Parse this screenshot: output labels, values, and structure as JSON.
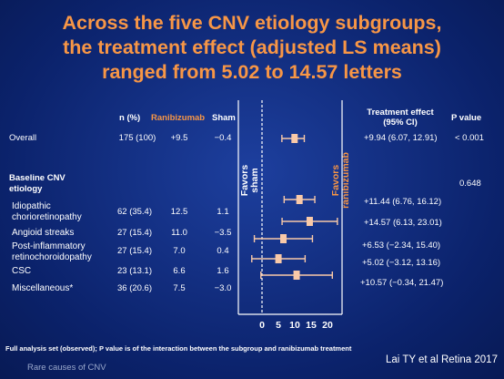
{
  "title_lines": [
    "Across the five CNV etiology subgroups,",
    "the treatment effect (adjusted LS means)",
    "ranged from 5.02 to 14.57 letters"
  ],
  "headers": {
    "n_pct": "n (%)",
    "ranibizumab": "Ranibizumab",
    "sham": "Sham",
    "treatment_effect": "Treatment effect\n(95% CI)",
    "p_value": "P value"
  },
  "overall": {
    "label": "Overall",
    "n": "175 (100)",
    "ranibizumab": "+9.5",
    "sham": "−0.4",
    "effect_text": "+9.94 (6.07, 12.91)",
    "p_value": "< 0.001"
  },
  "subgroup_header": "Baseline CNV\netiology",
  "interaction_p": "0.648",
  "subgroups": [
    {
      "label": "Idiopathic\nchorioretinopathy",
      "n": "62 (35.4)",
      "ranibizumab": "12.5",
      "sham": "1.1",
      "effect_text": "+11.44 (6.76, 16.12)"
    },
    {
      "label": "Angioid streaks",
      "n": "27 (15.4)",
      "ranibizumab": "11.0",
      "sham": "−3.5",
      "effect_text": "+14.57 (6.13, 23.01)"
    },
    {
      "label": "Post-inflammatory\nretinochoroidopathy",
      "n": "27 (15.4)",
      "ranibizumab": "7.0",
      "sham": "0.4",
      "effect_text": "+6.53 (−2.34, 15.40)"
    },
    {
      "label": "CSC",
      "n": "23 (13.1)",
      "ranibizumab": "6.6",
      "sham": "1.6",
      "effect_text": "+5.02 (−3.12, 13.16)"
    },
    {
      "label": "Miscellaneous*",
      "n": "36 (20.6)",
      "ranibizumab": "7.5",
      "sham": "−3.0",
      "effect_text": "+10.57 (−0.34, 21.47)"
    }
  ],
  "favors_sham": "Favors\nsham",
  "favors_ranibizumab": "Favors\nranibizumab",
  "chart_data": {
    "type": "forest",
    "categories": [
      "Overall",
      "Idiopathic chorioretinopathy",
      "Angioid streaks",
      "Post-inflammatory retinochoroidopathy",
      "CSC",
      "Miscellaneous*"
    ],
    "estimates": [
      9.94,
      11.44,
      14.57,
      6.53,
      5.02,
      10.57
    ],
    "ci_lower": [
      6.07,
      6.76,
      6.13,
      -2.34,
      -3.12,
      -0.34
    ],
    "ci_upper": [
      12.91,
      16.12,
      23.01,
      15.4,
      13.16,
      21.47
    ],
    "x_ticks": [
      0,
      5,
      10,
      15,
      20
    ],
    "xlim": [
      0,
      20
    ],
    "reference_line": 0,
    "marker_color": "#f9c9a8",
    "axis_color": "#ffffff"
  },
  "footnote": "Full analysis set (observed); P value is of the interaction between the subgroup and ranibizumab treatment",
  "footer_note": "Rare causes of CNV",
  "citation": "Lai TY et al Retina 2017",
  "colors": {
    "accent": "#f79646",
    "background": "#0b226b",
    "marker": "#f9c9a8"
  }
}
